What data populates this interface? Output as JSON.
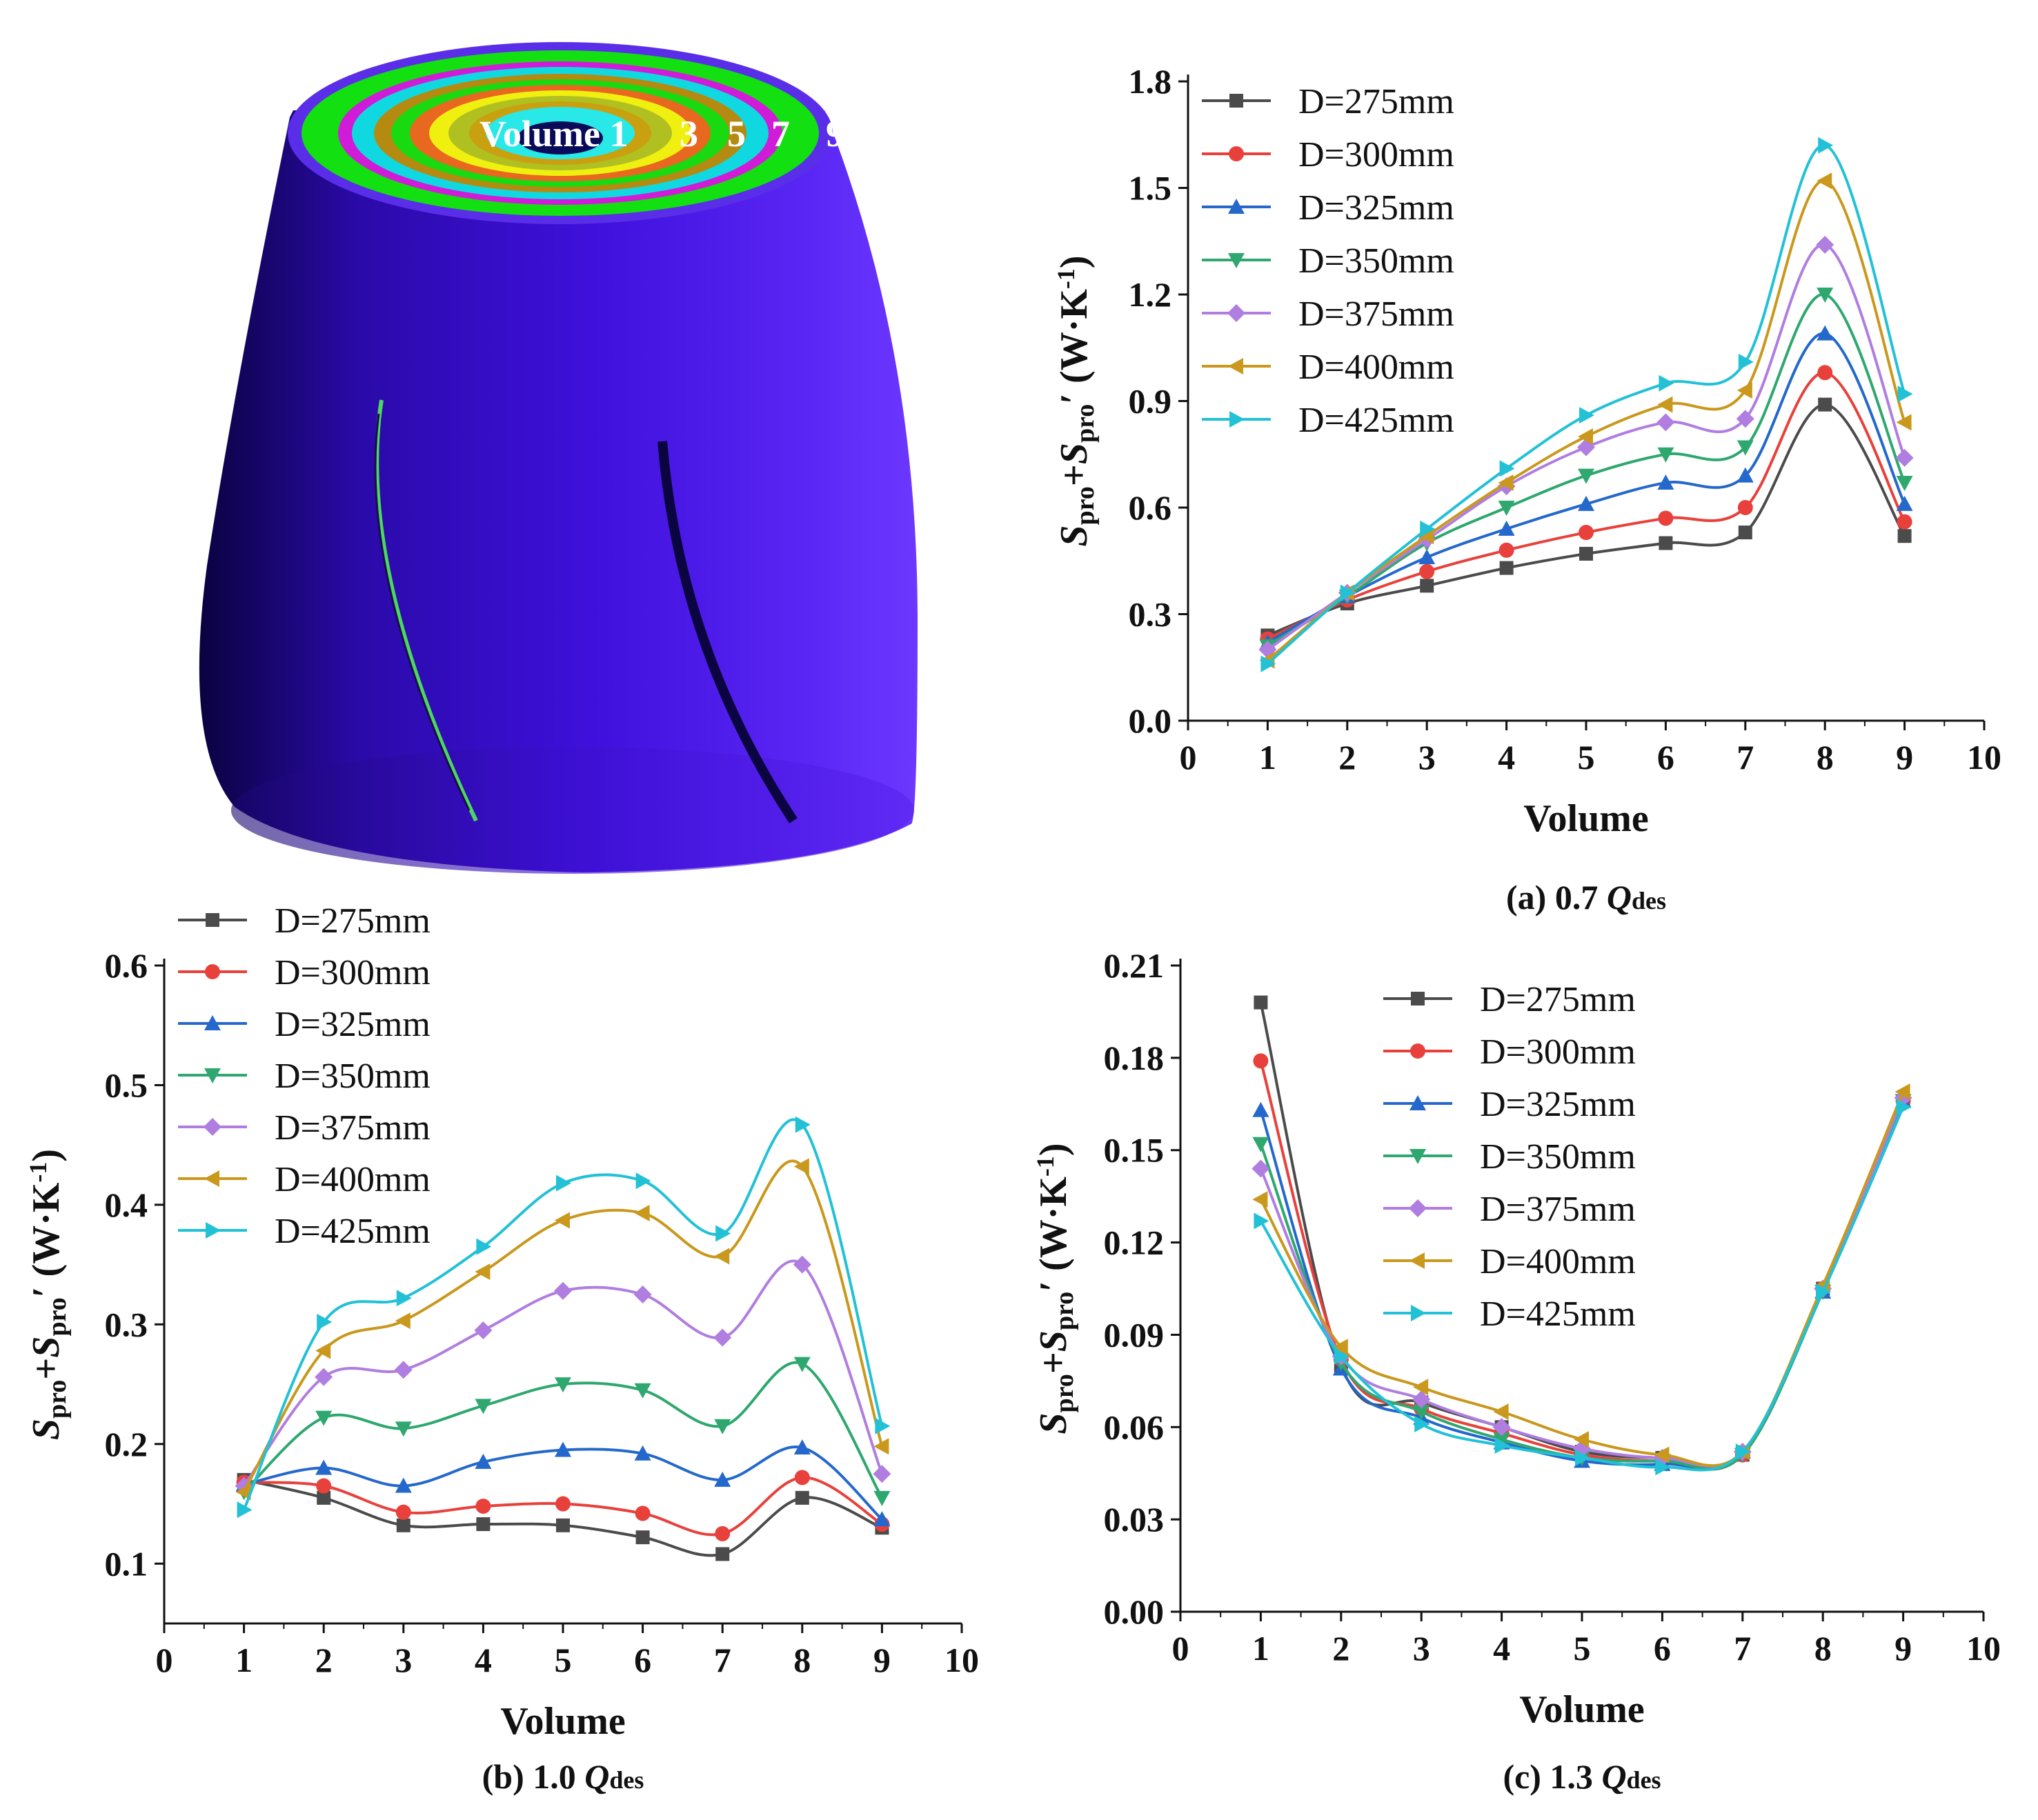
{
  "figure": {
    "model_label_volume": "Volume 1",
    "model_label_numbers": [
      "3",
      "5",
      "7",
      "9"
    ],
    "model_surface_color": "#3b0bd4",
    "ring_colors": [
      "#5a2ee8",
      "#13e010",
      "#d01bd8",
      "#10d8e0",
      "#b58a10",
      "#19d910",
      "#e86820",
      "#f0f010",
      "#b0c020",
      "#c9a010",
      "#28e8e8"
    ]
  },
  "series_meta": [
    {
      "name": "D=275mm",
      "color": "#4b4b4b",
      "marker": "square"
    },
    {
      "name": "D=300mm",
      "color": "#e8413c",
      "marker": "circle"
    },
    {
      "name": "D=325mm",
      "color": "#2468cc",
      "marker": "triangle-up"
    },
    {
      "name": "D=350mm",
      "color": "#2ea86e",
      "marker": "triangle-down"
    },
    {
      "name": "D=375mm",
      "color": "#b07de0",
      "marker": "diamond"
    },
    {
      "name": "D=400mm",
      "color": "#c9981c",
      "marker": "triangle-left"
    },
    {
      "name": "D=425mm",
      "color": "#22c1d6",
      "marker": "triangle-right"
    }
  ],
  "chart_data": [
    {
      "id": "a",
      "type": "line",
      "caption_prefix": "(a) 0.7 ",
      "caption_q": "Q",
      "caption_sub": "des",
      "xlabel": "Volume",
      "ylabel_s1": "S",
      "ylabel_sub1": "pro",
      "ylabel_plus": "+",
      "ylabel_s2": "S",
      "ylabel_sub2": "pro",
      "ylabel_tail": "′ (W·K",
      "ylabel_exp": "-1",
      "ylabel_close": ")",
      "xlim": [
        0,
        10
      ],
      "ylim": [
        0,
        1.8
      ],
      "xticks": [
        "0",
        "1",
        "2",
        "3",
        "4",
        "5",
        "6",
        "7",
        "8",
        "9",
        "10"
      ],
      "yticks": [
        "0.0",
        "0.3",
        "0.6",
        "0.9",
        "1.2",
        "1.5",
        "1.8"
      ],
      "legend_position": "top-left",
      "x": [
        1,
        2,
        3,
        4,
        5,
        6,
        7,
        8,
        9
      ],
      "series": [
        {
          "name": "D=275mm",
          "values": [
            0.24,
            0.33,
            0.38,
            0.43,
            0.47,
            0.5,
            0.53,
            0.89,
            0.52
          ]
        },
        {
          "name": "D=300mm",
          "values": [
            0.23,
            0.34,
            0.42,
            0.48,
            0.53,
            0.57,
            0.6,
            0.98,
            0.56
          ]
        },
        {
          "name": "D=325mm",
          "values": [
            0.22,
            0.35,
            0.46,
            0.54,
            0.61,
            0.67,
            0.69,
            1.09,
            0.61
          ]
        },
        {
          "name": "D=350mm",
          "values": [
            0.21,
            0.35,
            0.5,
            0.6,
            0.69,
            0.75,
            0.77,
            1.2,
            0.67
          ]
        },
        {
          "name": "D=375mm",
          "values": [
            0.2,
            0.36,
            0.51,
            0.66,
            0.77,
            0.84,
            0.85,
            1.34,
            0.74
          ]
        },
        {
          "name": "D=400mm",
          "values": [
            0.17,
            0.36,
            0.52,
            0.67,
            0.8,
            0.89,
            0.93,
            1.52,
            0.84
          ]
        },
        {
          "name": "D=425mm",
          "values": [
            0.16,
            0.36,
            0.54,
            0.71,
            0.86,
            0.95,
            1.01,
            1.62,
            0.92
          ]
        }
      ]
    },
    {
      "id": "b",
      "type": "line",
      "caption_prefix": "(b) 1.0 ",
      "caption_q": "Q",
      "caption_sub": "des",
      "xlabel": "Volume",
      "ylabel_s1": "S",
      "ylabel_sub1": "pro",
      "ylabel_plus": "+",
      "ylabel_s2": "S",
      "ylabel_sub2": "pro",
      "ylabel_tail": "′ (W·K",
      "ylabel_exp": "-1",
      "ylabel_close": ")",
      "xlim": [
        0,
        10
      ],
      "ylim": [
        0.05,
        0.6
      ],
      "xticks": [
        "0",
        "1",
        "2",
        "3",
        "4",
        "5",
        "6",
        "7",
        "8",
        "9",
        "10"
      ],
      "yticks": [
        "0.1",
        "0.2",
        "0.3",
        "0.4",
        "0.5",
        "0.6"
      ],
      "ytick_values": [
        0.1,
        0.2,
        0.3,
        0.4,
        0.5,
        0.6
      ],
      "legend_position": "top-left",
      "x": [
        1,
        2,
        3,
        4,
        5,
        6,
        7,
        8,
        9
      ],
      "series": [
        {
          "name": "D=275mm",
          "values": [
            0.17,
            0.155,
            0.132,
            0.133,
            0.132,
            0.122,
            0.108,
            0.155,
            0.13
          ]
        },
        {
          "name": "D=300mm",
          "values": [
            0.168,
            0.165,
            0.143,
            0.148,
            0.15,
            0.142,
            0.125,
            0.172,
            0.133
          ]
        },
        {
          "name": "D=325mm",
          "values": [
            0.166,
            0.18,
            0.165,
            0.185,
            0.195,
            0.192,
            0.17,
            0.197,
            0.137
          ]
        },
        {
          "name": "D=350mm",
          "values": [
            0.16,
            0.222,
            0.213,
            0.232,
            0.25,
            0.245,
            0.215,
            0.267,
            0.155
          ]
        },
        {
          "name": "D=375mm",
          "values": [
            0.165,
            0.256,
            0.262,
            0.295,
            0.328,
            0.325,
            0.289,
            0.35,
            0.175
          ]
        },
        {
          "name": "D=400mm",
          "values": [
            0.16,
            0.278,
            0.303,
            0.344,
            0.387,
            0.393,
            0.357,
            0.432,
            0.198
          ]
        },
        {
          "name": "D=425mm",
          "values": [
            0.145,
            0.302,
            0.322,
            0.365,
            0.418,
            0.42,
            0.376,
            0.467,
            0.215
          ]
        }
      ]
    },
    {
      "id": "c",
      "type": "line",
      "caption_prefix": "(c) 1.3 ",
      "caption_q": "Q",
      "caption_sub": "des",
      "xlabel": "Volume",
      "ylabel_s1": "S",
      "ylabel_sub1": "pro",
      "ylabel_plus": "+",
      "ylabel_s2": "S",
      "ylabel_sub2": "pro",
      "ylabel_tail": "′ (W·K",
      "ylabel_exp": "-1",
      "ylabel_close": ")",
      "xlim": [
        0,
        10
      ],
      "ylim": [
        0,
        0.21
      ],
      "xticks": [
        "0",
        "1",
        "2",
        "3",
        "4",
        "5",
        "6",
        "7",
        "8",
        "9",
        "10"
      ],
      "yticks": [
        "0.00",
        "0.03",
        "0.06",
        "0.09",
        "0.12",
        "0.15",
        "0.18",
        "0.21"
      ],
      "legend_position": "top-right",
      "x": [
        1,
        2,
        3,
        4,
        5,
        6,
        7,
        8,
        9
      ],
      "series": [
        {
          "name": "D=275mm",
          "values": [
            0.198,
            0.08,
            0.068,
            0.06,
            0.052,
            0.05,
            0.051,
            0.105,
            0.166
          ]
        },
        {
          "name": "D=300mm",
          "values": [
            0.179,
            0.082,
            0.066,
            0.058,
            0.051,
            0.049,
            0.051,
            0.105,
            0.166
          ]
        },
        {
          "name": "D=325mm",
          "values": [
            0.163,
            0.079,
            0.063,
            0.055,
            0.049,
            0.048,
            0.052,
            0.104,
            0.166
          ]
        },
        {
          "name": "D=350mm",
          "values": [
            0.152,
            0.081,
            0.065,
            0.056,
            0.05,
            0.049,
            0.051,
            0.104,
            0.166
          ]
        },
        {
          "name": "D=375mm",
          "values": [
            0.144,
            0.083,
            0.069,
            0.06,
            0.053,
            0.05,
            0.052,
            0.105,
            0.167
          ]
        },
        {
          "name": "D=400mm",
          "values": [
            0.134,
            0.086,
            0.073,
            0.065,
            0.056,
            0.051,
            0.052,
            0.106,
            0.169
          ]
        },
        {
          "name": "D=425mm",
          "values": [
            0.127,
            0.083,
            0.061,
            0.054,
            0.05,
            0.047,
            0.052,
            0.104,
            0.164
          ]
        }
      ]
    }
  ]
}
